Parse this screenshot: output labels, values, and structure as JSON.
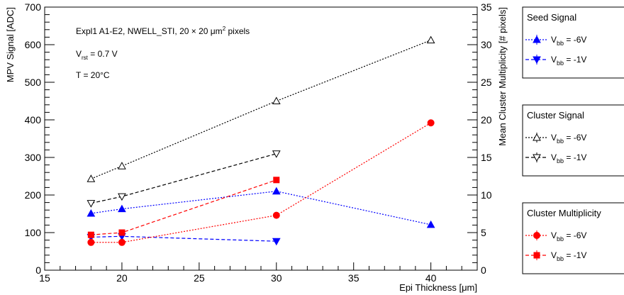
{
  "chart_data": {
    "type": "line",
    "xlabel": "Epi Thickness [μm]",
    "ylabel": "MPV Signal [ADC]",
    "ylabel_right": "Mean Cluster Multiplicity [# pixels]",
    "xlim": [
      15,
      43
    ],
    "ylim": [
      0,
      700
    ],
    "ylim_right": [
      0,
      35
    ],
    "x_ticks": [
      "15",
      "20",
      "25",
      "30",
      "35",
      "40"
    ],
    "y_ticks": [
      "0",
      "100",
      "200",
      "300",
      "400",
      "500",
      "600",
      "700"
    ],
    "y_ticks_right": [
      "0",
      "5",
      "10",
      "15",
      "20",
      "25",
      "30",
      "35"
    ],
    "annotations": {
      "line1_pre": "Expl1 A1-E2, NWELL_STI, 20 × 20 μm",
      "line1_sup": "2",
      "line1_post": " pixels",
      "line2_pre": "V",
      "line2_sub": "rst",
      "line2_post": " = 0.7 V",
      "line3": "T = 20°C"
    },
    "legend_groups": [
      {
        "title": "Seed Signal",
        "entries": [
          {
            "pre": "V",
            "sub": "bb",
            "post": " = -6V",
            "series_index": 0
          },
          {
            "pre": "V",
            "sub": "bb",
            "post": " = -1V",
            "series_index": 1
          }
        ]
      },
      {
        "title": "Cluster Signal",
        "entries": [
          {
            "pre": "V",
            "sub": "bb",
            "post": " = -6V",
            "series_index": 2
          },
          {
            "pre": "V",
            "sub": "bb",
            "post": " = -1V",
            "series_index": 3
          }
        ]
      },
      {
        "title": "Cluster Multiplicity",
        "entries": [
          {
            "pre": "V",
            "sub": "bb",
            "post": " = -6V",
            "series_index": 4
          },
          {
            "pre": "V",
            "sub": "bb",
            "post": " = -1V",
            "series_index": 5
          }
        ]
      }
    ],
    "series": [
      {
        "group": "Seed Signal",
        "name": "Vbb = -6V",
        "axis": "left",
        "color": "#0000ff",
        "marker": "triangle-up-filled",
        "dash": "dotted",
        "x": [
          18,
          20,
          30,
          40
        ],
        "y": [
          151,
          163,
          210,
          121
        ]
      },
      {
        "group": "Seed Signal",
        "name": "Vbb = -1V",
        "axis": "left",
        "color": "#0000ff",
        "marker": "triangle-down-filled",
        "dash": "dashed",
        "x": [
          18,
          20,
          30
        ],
        "y": [
          88,
          90,
          77
        ]
      },
      {
        "group": "Cluster Signal",
        "name": "Vbb = -6V",
        "axis": "left",
        "color": "#000000",
        "marker": "triangle-up-open",
        "dash": "dotted",
        "x": [
          18,
          20,
          30,
          40
        ],
        "y": [
          243,
          277,
          450,
          612
        ]
      },
      {
        "group": "Cluster Signal",
        "name": "Vbb = -1V",
        "axis": "left",
        "color": "#000000",
        "marker": "triangle-down-open",
        "dash": "dashed",
        "x": [
          18,
          20,
          30
        ],
        "y": [
          178,
          196,
          310
        ]
      },
      {
        "group": "Cluster Multiplicity",
        "name": "Vbb = -6V",
        "axis": "right",
        "color": "#ff0000",
        "marker": "circle-filled",
        "dash": "dotted",
        "x": [
          18,
          20,
          30,
          40
        ],
        "y": [
          3.7,
          3.7,
          7.3,
          19.6
        ]
      },
      {
        "group": "Cluster Multiplicity",
        "name": "Vbb = -1V",
        "axis": "right",
        "color": "#ff0000",
        "marker": "square-filled",
        "dash": "dashed",
        "x": [
          18,
          20,
          30
        ],
        "y": [
          4.7,
          5.0,
          12.0
        ]
      }
    ]
  }
}
